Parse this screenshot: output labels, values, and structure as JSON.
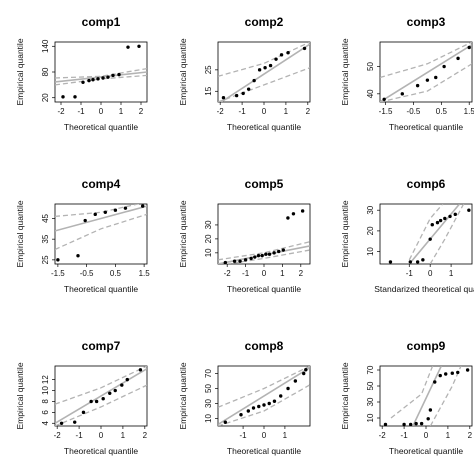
{
  "chart_data": [
    {
      "type": "scatter",
      "title": "comp1",
      "xlabel": "Theoretical quantile",
      "ylabel": "Empirical quantile",
      "xlim": [
        -2.3,
        2.3
      ],
      "ylim": [
        10,
        150
      ],
      "xticks": [
        -2,
        -1,
        0,
        1,
        2
      ],
      "yticks": [
        20,
        80,
        140
      ],
      "points": [
        [
          -1.9,
          22
        ],
        [
          -1.3,
          22
        ],
        [
          -0.9,
          56
        ],
        [
          -0.6,
          60
        ],
        [
          -0.4,
          62
        ],
        [
          -0.15,
          64
        ],
        [
          0.1,
          66
        ],
        [
          0.35,
          68
        ],
        [
          0.6,
          72
        ],
        [
          0.9,
          74
        ],
        [
          1.35,
          138
        ],
        [
          1.9,
          140
        ]
      ],
      "fit": [
        [
          -2.3,
          57
        ],
        [
          2.3,
          80
        ]
      ],
      "band_upper": [
        [
          -2.3,
          66
        ],
        [
          0,
          70
        ],
        [
          2.3,
          88
        ]
      ],
      "band_lower": [
        [
          -2.3,
          50
        ],
        [
          0,
          64
        ],
        [
          2.3,
          72
        ]
      ]
    },
    {
      "type": "scatter",
      "title": "comp2",
      "xlabel": "Theoretical quantile",
      "ylabel": "Empirical quantile",
      "xlim": [
        -2.1,
        2.1
      ],
      "ylim": [
        10,
        38
      ],
      "xticks": [
        -2,
        -1,
        0,
        1,
        2
      ],
      "yticks": [
        15,
        25
      ],
      "points": [
        [
          -1.85,
          12
        ],
        [
          -1.25,
          13
        ],
        [
          -0.95,
          14
        ],
        [
          -0.7,
          16
        ],
        [
          -0.45,
          20
        ],
        [
          -0.2,
          25
        ],
        [
          0.05,
          26
        ],
        [
          0.3,
          27
        ],
        [
          0.55,
          30
        ],
        [
          0.8,
          32
        ],
        [
          1.1,
          33
        ],
        [
          1.85,
          35
        ]
      ],
      "fit": [
        [
          -2.1,
          9
        ],
        [
          2.1,
          37
        ]
      ],
      "band_upper": [
        [
          -2.1,
          22
        ],
        [
          0,
          28
        ],
        [
          2.1,
          38
        ]
      ],
      "band_lower": [
        [
          -2.1,
          10
        ],
        [
          0,
          18
        ],
        [
          2.1,
          26
        ]
      ]
    },
    {
      "type": "scatter",
      "title": "comp3",
      "xlabel": "Theoretical quantile",
      "ylabel": "Empirical quantile",
      "xlim": [
        -1.7,
        1.6
      ],
      "ylim": [
        37,
        59
      ],
      "xticks": [
        -1.5,
        -0.5,
        0.5,
        1.5
      ],
      "yticks": [
        40,
        50
      ],
      "points": [
        [
          -1.55,
          38
        ],
        [
          -0.9,
          40
        ],
        [
          -0.35,
          43
        ],
        [
          0,
          45
        ],
        [
          0.3,
          46
        ],
        [
          0.6,
          50
        ],
        [
          1.1,
          53
        ],
        [
          1.5,
          57
        ]
      ],
      "fit": [
        [
          -1.7,
          37
        ],
        [
          1.6,
          58
        ]
      ],
      "band_upper": [
        [
          -1.7,
          46
        ],
        [
          0,
          51
        ],
        [
          1.6,
          59
        ]
      ],
      "band_lower": [
        [
          -1.7,
          37
        ],
        [
          0,
          41
        ],
        [
          1.6,
          51
        ]
      ]
    },
    {
      "type": "scatter",
      "title": "comp4",
      "xlabel": "Theoretical quantile",
      "ylabel": "Empirical quantile",
      "xlim": [
        -1.6,
        1.6
      ],
      "ylim": [
        23,
        52
      ],
      "xticks": [
        -1.5,
        -0.5,
        0.5,
        1.5
      ],
      "yticks": [
        25,
        35,
        45
      ],
      "points": [
        [
          -1.5,
          25
        ],
        [
          -0.8,
          27
        ],
        [
          -0.55,
          44
        ],
        [
          -0.2,
          47
        ],
        [
          0.15,
          48
        ],
        [
          0.5,
          49
        ],
        [
          0.85,
          50
        ],
        [
          1.45,
          51
        ]
      ],
      "fit": [
        [
          -1.6,
          39
        ],
        [
          1.6,
          51
        ]
      ],
      "band_upper": [
        [
          -1.6,
          46
        ],
        [
          0,
          48
        ],
        [
          1.6,
          53
        ]
      ],
      "band_lower": [
        [
          -1.6,
          30
        ],
        [
          0,
          40
        ],
        [
          1.6,
          47
        ]
      ]
    },
    {
      "type": "scatter",
      "title": "comp5",
      "xlabel": "Theoretical quantile",
      "ylabel": "Empirical quantile",
      "xlim": [
        -2.5,
        2.5
      ],
      "ylim": [
        2,
        45
      ],
      "xticks": [
        -2,
        -1,
        0,
        1,
        2
      ],
      "yticks": [
        10,
        20,
        30
      ],
      "points": [
        [
          -2.1,
          3
        ],
        [
          -1.6,
          4
        ],
        [
          -1.3,
          4
        ],
        [
          -1.0,
          5
        ],
        [
          -0.7,
          6
        ],
        [
          -0.5,
          7
        ],
        [
          -0.3,
          8
        ],
        [
          -0.1,
          8
        ],
        [
          0.1,
          9
        ],
        [
          0.3,
          9
        ],
        [
          0.55,
          10
        ],
        [
          0.8,
          11
        ],
        [
          1.05,
          12
        ],
        [
          1.3,
          35
        ],
        [
          1.6,
          38
        ],
        [
          2.1,
          40
        ]
      ],
      "fit": [
        [
          -2.5,
          2
        ],
        [
          2.5,
          15
        ]
      ],
      "band_upper": [
        [
          -2.5,
          5
        ],
        [
          0,
          10
        ],
        [
          2.5,
          18
        ]
      ],
      "band_lower": [
        [
          -2.5,
          1
        ],
        [
          0,
          6
        ],
        [
          2.5,
          12
        ]
      ]
    },
    {
      "type": "scatter",
      "title": "comp6",
      "xlabel": "Standarized theoretical qua",
      "ylabel": "Empirical quantile",
      "xlim": [
        -2.4,
        2.0
      ],
      "ylim": [
        4,
        33
      ],
      "xticks": [
        -1,
        0,
        1
      ],
      "yticks": [
        10,
        20,
        30
      ],
      "points": [
        [
          -1.9,
          5
        ],
        [
          -0.95,
          5
        ],
        [
          -0.6,
          5
        ],
        [
          -0.35,
          6
        ],
        [
          0,
          16
        ],
        [
          0.1,
          23
        ],
        [
          0.35,
          24
        ],
        [
          0.5,
          25
        ],
        [
          0.7,
          26
        ],
        [
          0.95,
          27
        ],
        [
          1.2,
          28
        ],
        [
          1.85,
          30
        ]
      ],
      "fit": [
        [
          -1.0,
          4
        ],
        [
          1.4,
          33
        ]
      ],
      "band_upper": [
        [
          -1.0,
          6
        ],
        [
          0,
          26
        ],
        [
          0.6,
          33
        ]
      ],
      "band_lower": [
        [
          0.0,
          4
        ],
        [
          0.7,
          16
        ],
        [
          1.6,
          33
        ]
      ]
    },
    {
      "type": "scatter",
      "title": "comp7",
      "xlabel": "Theoretical quantile",
      "ylabel": "Empirical quantile",
      "xlim": [
        -2.1,
        2.1
      ],
      "ylim": [
        3.5,
        14.5
      ],
      "xticks": [
        -2,
        -1,
        0,
        1,
        2
      ],
      "yticks": [
        4,
        6,
        8,
        10,
        12
      ],
      "points": [
        [
          -1.8,
          4
        ],
        [
          -1.2,
          4.2
        ],
        [
          -0.8,
          6
        ],
        [
          -0.45,
          8
        ],
        [
          -0.2,
          8
        ],
        [
          0.1,
          8.5
        ],
        [
          0.4,
          9.5
        ],
        [
          0.65,
          10
        ],
        [
          0.95,
          11
        ],
        [
          1.2,
          12
        ],
        [
          1.8,
          13.8
        ]
      ],
      "fit": [
        [
          -2.1,
          4
        ],
        [
          2.1,
          14
        ]
      ],
      "band_upper": [
        [
          -2.1,
          7.5
        ],
        [
          0,
          10.5
        ],
        [
          2.1,
          14.5
        ]
      ],
      "band_lower": [
        [
          -2.1,
          3.5
        ],
        [
          0,
          7
        ],
        [
          2.1,
          11
        ]
      ]
    },
    {
      "type": "scatter",
      "title": "comp8",
      "xlabel": "Theoretical quantile",
      "ylabel": "Empirical quantile",
      "xlim": [
        -2.2,
        2.2
      ],
      "ylim": [
        0,
        80
      ],
      "xticks": [
        -1,
        0,
        1
      ],
      "yticks": [
        10,
        30,
        50,
        70
      ],
      "points": [
        [
          -1.85,
          5
        ],
        [
          -1.1,
          15
        ],
        [
          -0.75,
          20
        ],
        [
          -0.5,
          24
        ],
        [
          -0.25,
          26
        ],
        [
          0.0,
          28
        ],
        [
          0.25,
          30
        ],
        [
          0.5,
          33
        ],
        [
          0.8,
          40
        ],
        [
          1.15,
          50
        ],
        [
          1.5,
          60
        ],
        [
          1.9,
          70
        ],
        [
          2.0,
          75
        ]
      ],
      "fit": [
        [
          -2.2,
          2
        ],
        [
          2.2,
          78
        ]
      ],
      "band_upper": [
        [
          -2.2,
          25
        ],
        [
          0,
          50
        ],
        [
          2.2,
          80
        ]
      ],
      "band_lower": [
        [
          -2.2,
          0
        ],
        [
          0,
          20
        ],
        [
          2.2,
          55
        ]
      ]
    },
    {
      "type": "scatter",
      "title": "comp9",
      "xlabel": "Theoretical quantile",
      "ylabel": "Empirical quantile",
      "xlim": [
        -2.1,
        2.1
      ],
      "ylim": [
        0,
        75
      ],
      "xticks": [
        -2,
        -1,
        0,
        1,
        2
      ],
      "yticks": [
        10,
        30,
        50,
        70
      ],
      "points": [
        [
          -1.85,
          2
        ],
        [
          -1.0,
          2
        ],
        [
          -0.7,
          2
        ],
        [
          -0.45,
          3
        ],
        [
          -0.2,
          3
        ],
        [
          0.1,
          9
        ],
        [
          0.2,
          20
        ],
        [
          0.4,
          55
        ],
        [
          0.65,
          63
        ],
        [
          0.9,
          65
        ],
        [
          1.2,
          66
        ],
        [
          1.45,
          67
        ],
        [
          1.9,
          70
        ]
      ],
      "fit": [
        [
          -0.6,
          0
        ],
        [
          0.7,
          75
        ]
      ],
      "band_upper": [
        [
          -1.6,
          10
        ],
        [
          -0.2,
          40
        ],
        [
          0.3,
          75
        ]
      ],
      "band_lower": [
        [
          0.2,
          0
        ],
        [
          1.2,
          50
        ],
        [
          1.6,
          75
        ]
      ]
    }
  ]
}
